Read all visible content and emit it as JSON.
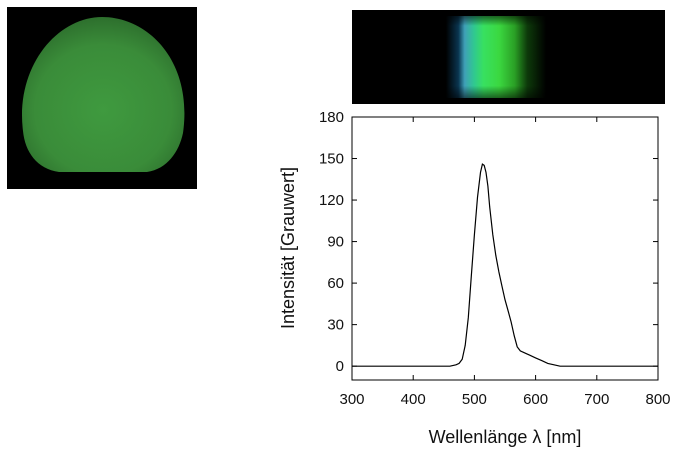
{
  "colors": {
    "glow": "#3a8f3a",
    "line": "#000000",
    "photo_background": "#000000"
  },
  "chart_data": {
    "type": "line",
    "xlabel": "Wellenlänge λ [nm]",
    "ylabel": "Intensität [Grauwert]",
    "xlim": [
      300,
      800
    ],
    "ylim": [
      -10,
      180
    ],
    "xticks": [
      300,
      400,
      500,
      600,
      700,
      800
    ],
    "yticks": [
      0,
      30,
      60,
      90,
      120,
      150,
      180
    ],
    "grid": false,
    "series": [
      {
        "x": [
          300,
          350,
          400,
          440,
          460,
          470,
          475,
          480,
          485,
          490,
          495,
          500,
          505,
          510,
          513,
          516,
          519,
          522,
          525,
          530,
          535,
          540,
          545,
          550,
          555,
          560,
          565,
          570,
          575,
          580,
          585,
          590,
          600,
          610,
          620,
          630,
          640,
          660,
          700,
          750,
          800
        ],
        "y": [
          0,
          0,
          0,
          0,
          0,
          1,
          2,
          5,
          15,
          35,
          65,
          95,
          122,
          140,
          146,
          145,
          140,
          130,
          115,
          95,
          80,
          68,
          58,
          48,
          40,
          32,
          22,
          14,
          11,
          10,
          9,
          8,
          6,
          4,
          2,
          1,
          0,
          0,
          0,
          0,
          0
        ]
      }
    ]
  }
}
